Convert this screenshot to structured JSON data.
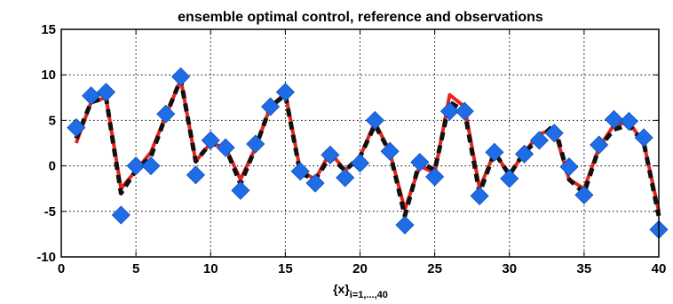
{
  "chart_data": {
    "type": "line",
    "title": "ensemble optimal control, reference and observations",
    "xlabel_main": "{x}",
    "xlabel_sub": "i=1,...,40",
    "ylabel": "",
    "xlim": [
      0,
      40
    ],
    "ylim": [
      -10,
      15
    ],
    "xticks": [
      "0",
      "5",
      "10",
      "15",
      "20",
      "25",
      "30",
      "35",
      "40"
    ],
    "yticks": [
      "15",
      "10",
      "5",
      "0",
      "-5",
      "-10"
    ],
    "grid": true,
    "legend": "none",
    "x": [
      1,
      2,
      3,
      4,
      5,
      6,
      7,
      8,
      9,
      10,
      11,
      12,
      13,
      14,
      15,
      16,
      17,
      18,
      19,
      20,
      21,
      22,
      23,
      24,
      25,
      26,
      27,
      28,
      29,
      30,
      31,
      32,
      33,
      34,
      35,
      36,
      37,
      38,
      39,
      40
    ],
    "series": [
      {
        "role": "ensemble optimal control",
        "style": "solid",
        "color": "#e8231c",
        "values": [
          2.5,
          7.0,
          7.5,
          -2.5,
          -0.5,
          1.5,
          5.5,
          9.5,
          0.5,
          2.5,
          2.0,
          -1.5,
          2.0,
          6.5,
          8.0,
          -0.5,
          -1.5,
          1.5,
          -0.5,
          1.0,
          4.8,
          1.5,
          -4.8,
          0.0,
          -0.8,
          7.8,
          6.5,
          -2.5,
          1.5,
          -1.0,
          1.5,
          3.5,
          4.0,
          -1.5,
          -2.5,
          2.0,
          4.5,
          4.8,
          2.5,
          -5.0
        ]
      },
      {
        "role": "reference",
        "style": "dashed",
        "color": "#111111",
        "values": [
          3.0,
          7.0,
          7.5,
          -3.0,
          -0.5,
          1.0,
          5.5,
          9.5,
          0.5,
          2.5,
          2.0,
          -2.0,
          2.0,
          6.5,
          7.8,
          -0.8,
          -1.5,
          1.0,
          -0.5,
          1.0,
          4.5,
          1.5,
          -5.5,
          0.5,
          -0.5,
          7.0,
          6.0,
          -3.0,
          1.5,
          -1.0,
          1.5,
          3.0,
          4.5,
          -1.5,
          -3.0,
          2.0,
          4.0,
          4.5,
          2.5,
          -5.5
        ]
      },
      {
        "role": "observations",
        "style": "markers",
        "marker": "diamond",
        "color": "#1e6de6",
        "values": [
          4.2,
          7.7,
          8.1,
          -5.4,
          0.0,
          0.0,
          5.7,
          9.8,
          -1.0,
          2.8,
          2.0,
          -2.7,
          2.4,
          6.5,
          8.1,
          -0.6,
          -1.9,
          1.2,
          -1.3,
          0.3,
          5.0,
          1.6,
          -6.5,
          0.4,
          -1.2,
          6.0,
          6.0,
          -3.3,
          1.5,
          -1.4,
          1.3,
          2.8,
          3.6,
          -0.1,
          -3.2,
          2.3,
          5.1,
          4.9,
          3.1,
          -7.0
        ]
      }
    ]
  }
}
